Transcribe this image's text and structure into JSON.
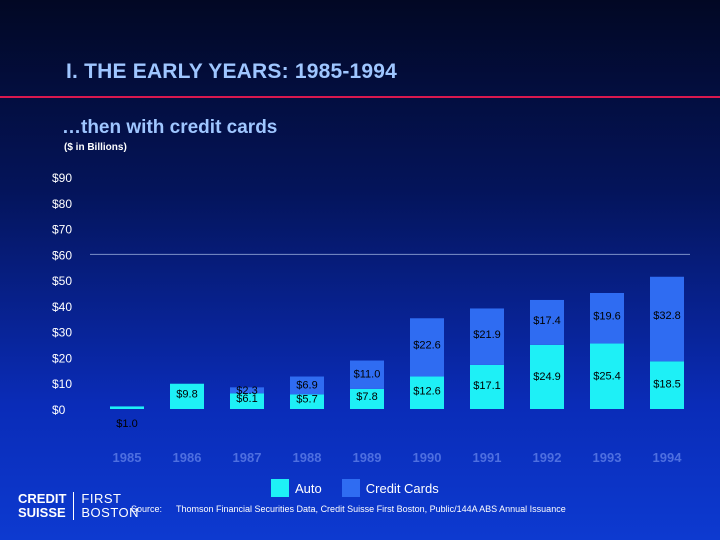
{
  "header": {
    "title": "I.  THE EARLY YEARS:  1985-1994",
    "subtitle": "…then with credit cards",
    "units": "($ in Billions)"
  },
  "legend": {
    "auto": "Auto",
    "credit_cards": "Credit Cards"
  },
  "footer": {
    "logo_left_1": "CREDIT",
    "logo_left_2": "SUISSE",
    "logo_right_1": "FIRST",
    "logo_right_2": "BOSTON",
    "source_label": "Source:",
    "source_text": "Thomson Financial Securities Data, Credit Suisse First Boston, Public/144A ABS Annual Issuance"
  },
  "colors": {
    "auto": "#1ef0f6",
    "credit_cards": "#2f6cf2",
    "title": "#9fc6ff",
    "rule": "#d9184e"
  },
  "chart_data": {
    "type": "bar",
    "stacked": true,
    "categories": [
      "1985",
      "1986",
      "1987",
      "1988",
      "1989",
      "1990",
      "1991",
      "1992",
      "1993",
      "1994"
    ],
    "ylim": [
      0,
      90
    ],
    "yticks": [
      0,
      10,
      20,
      30,
      40,
      50,
      60,
      70,
      80,
      90
    ],
    "ytick_labels": [
      "$0",
      "$10",
      "$20",
      "$30",
      "$40",
      "$50",
      "$60",
      "$70",
      "$80",
      "$90"
    ],
    "legend_position": "bottom",
    "series": [
      {
        "name": "Auto",
        "values": [
          1.0,
          9.8,
          6.1,
          5.7,
          7.8,
          12.6,
          17.1,
          24.9,
          25.4,
          18.5
        ],
        "labels": [
          "$1.0",
          "$9.8",
          "$6.1",
          "$5.7",
          "$7.8",
          "$12.6",
          "$17.1",
          "$24.9",
          "$25.4",
          "$18.5"
        ]
      },
      {
        "name": "Credit Cards",
        "values": [
          0,
          0,
          2.3,
          6.9,
          11.0,
          22.6,
          21.9,
          17.4,
          19.6,
          32.8
        ],
        "labels": [
          "",
          "",
          "$2.3",
          "$6.9",
          "$11.0",
          "$22.6",
          "$21.9",
          "$17.4",
          "$19.6",
          "$32.8"
        ]
      }
    ]
  }
}
